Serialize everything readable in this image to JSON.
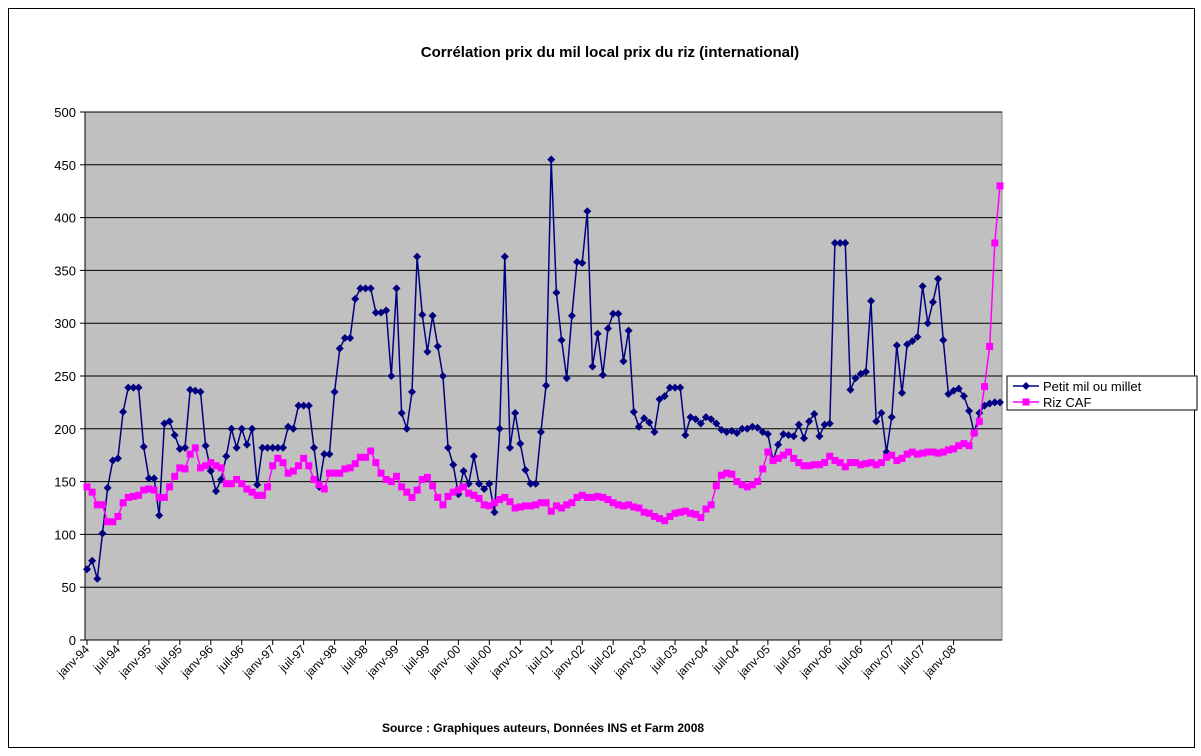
{
  "chart_data": {
    "type": "line",
    "title": "Corrélation prix du mil local prix du riz (international)",
    "xlabel": "Source : Graphiques auteurs, Données INS et Farm 2008",
    "categories": [
      "janv-94",
      null,
      null,
      null,
      null,
      null,
      "juil-94",
      null,
      null,
      null,
      null,
      null,
      "janv-95",
      null,
      null,
      null,
      null,
      null,
      "juil-95",
      null,
      null,
      null,
      null,
      null,
      "janv-96",
      null,
      null,
      null,
      null,
      null,
      "juil-96",
      null,
      null,
      null,
      null,
      null,
      "janv-97",
      null,
      null,
      null,
      null,
      null,
      "juil-97",
      null,
      null,
      null,
      null,
      null,
      "janv-98",
      null,
      null,
      null,
      null,
      null,
      "juil-98",
      null,
      null,
      null,
      null,
      null,
      "janv-99",
      null,
      null,
      null,
      null,
      null,
      "juil-99",
      null,
      null,
      null,
      null,
      null,
      "janv-00",
      null,
      null,
      null,
      null,
      null,
      "juil-00",
      null,
      null,
      null,
      null,
      null,
      "janv-01",
      null,
      null,
      null,
      null,
      null,
      "juil-01",
      null,
      null,
      null,
      null,
      null,
      "janv-02",
      null,
      null,
      null,
      null,
      null,
      "juil-02",
      null,
      null,
      null,
      null,
      null,
      "janv-03",
      null,
      null,
      null,
      null,
      null,
      "juil-03",
      null,
      null,
      null,
      null,
      null,
      "janv-04",
      null,
      null,
      null,
      null,
      null,
      "juil-04",
      null,
      null,
      null,
      null,
      null,
      "janv-05",
      null,
      null,
      null,
      null,
      null,
      "juil-05",
      null,
      null,
      null,
      null,
      null,
      "janv-06",
      null,
      null,
      null,
      null,
      null,
      "juil-06",
      null,
      null,
      null,
      null,
      null,
      "janv-07",
      null,
      null,
      null,
      null,
      null,
      "juil-07",
      null,
      null,
      null,
      null,
      null,
      "janv-08",
      null,
      null,
      null,
      null,
      null,
      null,
      null,
      null,
      null
    ],
    "series": [
      {
        "name": "Petit mil ou millet",
        "color": "#000080",
        "marker": "diamond",
        "values": [
          67,
          75,
          58,
          101,
          144,
          170,
          172,
          216,
          239,
          239,
          239,
          183,
          153,
          153,
          118,
          205,
          207,
          194,
          181,
          182,
          237,
          236,
          235,
          184,
          160,
          141,
          152,
          174,
          200,
          182,
          200,
          185,
          200,
          147,
          182,
          182,
          182,
          182,
          182,
          202,
          200,
          222,
          222,
          222,
          182,
          145,
          176,
          176,
          235,
          276,
          286,
          286,
          323,
          333,
          333,
          333,
          310,
          310,
          312,
          250,
          333,
          215,
          200,
          235,
          363,
          308,
          273,
          307,
          278,
          250,
          182,
          166,
          138,
          160,
          148,
          174,
          148,
          143,
          148,
          121,
          200,
          363,
          182,
          215,
          186,
          161,
          148,
          148,
          197,
          241,
          455,
          329,
          284,
          248,
          307,
          358,
          357,
          406,
          259,
          290,
          251,
          295,
          309,
          309,
          264,
          293,
          216,
          202,
          210,
          206,
          197,
          228,
          231,
          239,
          239,
          239,
          194,
          211,
          209,
          205,
          211,
          209,
          205,
          199,
          197,
          198,
          196,
          200,
          200,
          202,
          201,
          197,
          195,
          170,
          185,
          195,
          194,
          193,
          204,
          191,
          207,
          214,
          193,
          204,
          205,
          376,
          376,
          376,
          237,
          248,
          252,
          254,
          321,
          207,
          215,
          178,
          211,
          279,
          234,
          280,
          283,
          287,
          335,
          300,
          320,
          342,
          284,
          233,
          236,
          238,
          231,
          217,
          196,
          215,
          222,
          224,
          225,
          225
        ]
      },
      {
        "name": "Riz CAF",
        "color": "#ff00ff",
        "marker": "square",
        "values": [
          145,
          140,
          128,
          128,
          112,
          112,
          117,
          130,
          135,
          136,
          137,
          142,
          143,
          142,
          135,
          135,
          145,
          155,
          163,
          162,
          176,
          182,
          163,
          165,
          168,
          165,
          163,
          148,
          148,
          152,
          148,
          143,
          140,
          137,
          137,
          145,
          165,
          172,
          168,
          158,
          160,
          165,
          172,
          165,
          152,
          147,
          143,
          158,
          158,
          158,
          162,
          163,
          167,
          173,
          173,
          179,
          168,
          158,
          152,
          150,
          155,
          145,
          140,
          135,
          142,
          152,
          154,
          146,
          135,
          128,
          136,
          140,
          142,
          145,
          139,
          137,
          134,
          128,
          127,
          130,
          133,
          135,
          131,
          125,
          126,
          127,
          127,
          128,
          130,
          130,
          122,
          127,
          125,
          128,
          130,
          135,
          137,
          135,
          135,
          136,
          135,
          133,
          130,
          128,
          127,
          128,
          126,
          125,
          121,
          120,
          117,
          115,
          113,
          117,
          120,
          121,
          122,
          120,
          119,
          116,
          124,
          128,
          146,
          156,
          158,
          157,
          150,
          147,
          145,
          147,
          150,
          162,
          178,
          170,
          172,
          175,
          178,
          172,
          168,
          165,
          165,
          166,
          166,
          168,
          174,
          170,
          168,
          164,
          168,
          168,
          166,
          167,
          168,
          166,
          168,
          173,
          175,
          170,
          172,
          176,
          178,
          176,
          177,
          178,
          178,
          177,
          178,
          180,
          181,
          184,
          186,
          184,
          196,
          207,
          240,
          278,
          376,
          430
        ]
      }
    ],
    "ylim": [
      0,
      500
    ],
    "yticks": [
      0,
      50,
      100,
      150,
      200,
      250,
      300,
      350,
      400,
      450,
      500
    ],
    "grid": true,
    "legend": "right",
    "plot_background": "#c0c0c0"
  }
}
